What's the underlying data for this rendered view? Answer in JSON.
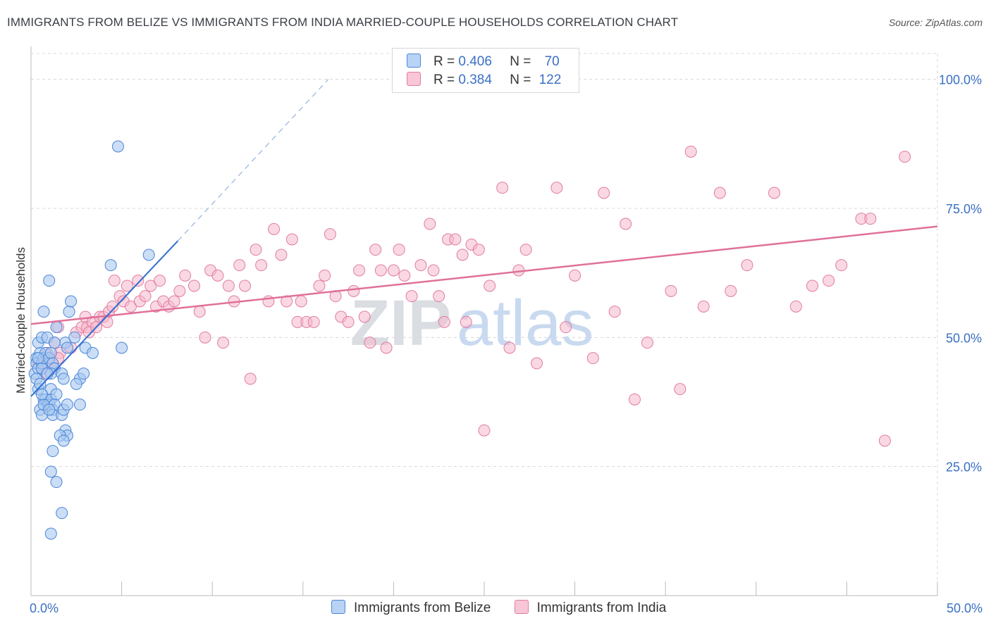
{
  "title": "IMMIGRANTS FROM BELIZE VS IMMIGRANTS FROM INDIA MARRIED-COUPLE HOUSEHOLDS CORRELATION CHART",
  "source": "Source: ZipAtlas.com",
  "watermark": {
    "part1": "ZIP",
    "part2": "atlas"
  },
  "legend": {
    "belize": {
      "r_label": "R =",
      "r_value": "0.406",
      "n_label": "N =",
      "n_value": "70"
    },
    "india": {
      "r_label": "R =",
      "r_value": "0.384",
      "n_label": "N =",
      "n_value": "122"
    }
  },
  "colors": {
    "belize_fill": "#a9c8f0",
    "belize_stroke": "#4a86d8",
    "belize_line": "#2f6fd0",
    "india_fill": "#f5b8cc",
    "india_stroke": "#e07ca0",
    "india_line": "#e0709a",
    "grid": "#d8d8d8",
    "axis_text": "#3a6fc4"
  },
  "chart_data": {
    "type": "scatter",
    "title": "IMMIGRANTS FROM BELIZE VS IMMIGRANTS FROM INDIA MARRIED-COUPLE HOUSEHOLDS CORRELATION CHART",
    "xlabel": "",
    "ylabel": "Married-couple Households",
    "xlim": [
      0,
      50
    ],
    "ylim": [
      0,
      105
    ],
    "x_tick_labels": [
      "0.0%",
      "50.0%"
    ],
    "y_ticks": [
      25,
      50,
      75,
      100
    ],
    "y_tick_labels": [
      "25.0%",
      "50.0%",
      "75.0%",
      "100.0%"
    ],
    "grid": true,
    "legend_position": "bottom",
    "series": [
      {
        "name": "Immigrants from Belize",
        "R": 0.406,
        "N": 70,
        "trend": {
          "x0": 0,
          "y0": 38.6,
          "x1": 8.1,
          "y1": 68.7,
          "dash_to_x": 16.4,
          "dash_to_y": 100.0
        },
        "points": [
          [
            0.2,
            43
          ],
          [
            0.3,
            46
          ],
          [
            0.3,
            45
          ],
          [
            0.4,
            44
          ],
          [
            0.3,
            42
          ],
          [
            0.4,
            40
          ],
          [
            0.5,
            41
          ],
          [
            0.5,
            47
          ],
          [
            0.6,
            45
          ],
          [
            0.6,
            44
          ],
          [
            0.7,
            46
          ],
          [
            0.8,
            47
          ],
          [
            0.4,
            49
          ],
          [
            0.6,
            50
          ],
          [
            0.9,
            50
          ],
          [
            1.0,
            46
          ],
          [
            1.1,
            47
          ],
          [
            1.2,
            45
          ],
          [
            1.3,
            44
          ],
          [
            1.1,
            43
          ],
          [
            0.7,
            38
          ],
          [
            0.8,
            38
          ],
          [
            0.9,
            37
          ],
          [
            1.0,
            37
          ],
          [
            1.1,
            38
          ],
          [
            1.2,
            36
          ],
          [
            1.3,
            37
          ],
          [
            1.2,
            35
          ],
          [
            0.5,
            36
          ],
          [
            0.6,
            35
          ],
          [
            0.7,
            37
          ],
          [
            1.1,
            40
          ],
          [
            1.4,
            39
          ],
          [
            1.7,
            35
          ],
          [
            1.8,
            36
          ],
          [
            1.7,
            43
          ],
          [
            1.8,
            42
          ],
          [
            2.0,
            37
          ],
          [
            1.9,
            32
          ],
          [
            2.0,
            31
          ],
          [
            1.6,
            31
          ],
          [
            1.8,
            30
          ],
          [
            1.2,
            28
          ],
          [
            1.1,
            24
          ],
          [
            1.4,
            22
          ],
          [
            1.7,
            16
          ],
          [
            1.1,
            12
          ],
          [
            0.7,
            55
          ],
          [
            1.0,
            61
          ],
          [
            1.4,
            52
          ],
          [
            1.9,
            49
          ],
          [
            2.0,
            48
          ],
          [
            2.1,
            55
          ],
          [
            2.2,
            57
          ],
          [
            2.4,
            50
          ],
          [
            2.7,
            42
          ],
          [
            2.9,
            43
          ],
          [
            2.7,
            37
          ],
          [
            3.0,
            48
          ],
          [
            3.4,
            47
          ],
          [
            4.4,
            64
          ],
          [
            4.8,
            87
          ],
          [
            5.0,
            48
          ],
          [
            6.5,
            66
          ],
          [
            1.0,
            36
          ],
          [
            1.3,
            49
          ],
          [
            0.9,
            43
          ],
          [
            2.5,
            41
          ],
          [
            0.4,
            46
          ],
          [
            0.6,
            39
          ]
        ]
      },
      {
        "name": "Immigrants from India",
        "R": 0.384,
        "N": 122,
        "trend": {
          "x0": 0,
          "y0": 52.6,
          "x1": 50,
          "y1": 71.5
        },
        "points": [
          [
            0.4,
            45
          ],
          [
            0.6,
            44
          ],
          [
            0.8,
            43
          ],
          [
            1.0,
            46
          ],
          [
            1.1,
            45
          ],
          [
            1.3,
            44
          ],
          [
            0.9,
            47
          ],
          [
            1.3,
            49
          ],
          [
            1.5,
            52
          ],
          [
            1.6,
            47
          ],
          [
            1.5,
            46
          ],
          [
            2.2,
            48
          ],
          [
            2.5,
            51
          ],
          [
            2.8,
            52
          ],
          [
            3.0,
            54
          ],
          [
            3.1,
            52
          ],
          [
            3.2,
            51
          ],
          [
            3.4,
            53
          ],
          [
            3.6,
            52
          ],
          [
            3.8,
            54
          ],
          [
            4.0,
            54
          ],
          [
            4.2,
            53
          ],
          [
            4.3,
            55
          ],
          [
            4.5,
            56
          ],
          [
            4.6,
            61
          ],
          [
            4.9,
            58
          ],
          [
            5.1,
            57
          ],
          [
            5.3,
            60
          ],
          [
            5.5,
            56
          ],
          [
            5.9,
            61
          ],
          [
            6.0,
            57
          ],
          [
            6.3,
            58
          ],
          [
            6.6,
            60
          ],
          [
            6.9,
            56
          ],
          [
            7.1,
            61
          ],
          [
            7.3,
            57
          ],
          [
            7.6,
            56
          ],
          [
            7.9,
            57
          ],
          [
            8.2,
            59
          ],
          [
            8.5,
            62
          ],
          [
            9.0,
            60
          ],
          [
            9.3,
            55
          ],
          [
            9.6,
            50
          ],
          [
            9.9,
            63
          ],
          [
            10.3,
            62
          ],
          [
            10.6,
            49
          ],
          [
            10.9,
            60
          ],
          [
            11.2,
            57
          ],
          [
            11.5,
            64
          ],
          [
            11.8,
            60
          ],
          [
            12.1,
            42
          ],
          [
            12.4,
            67
          ],
          [
            12.7,
            64
          ],
          [
            13.1,
            57
          ],
          [
            13.4,
            71
          ],
          [
            13.8,
            66
          ],
          [
            14.1,
            57
          ],
          [
            14.4,
            69
          ],
          [
            14.7,
            53
          ],
          [
            14.9,
            57
          ],
          [
            15.2,
            53
          ],
          [
            15.6,
            53
          ],
          [
            15.9,
            60
          ],
          [
            16.2,
            62
          ],
          [
            16.5,
            70
          ],
          [
            16.8,
            58
          ],
          [
            17.1,
            54
          ],
          [
            17.5,
            53
          ],
          [
            17.8,
            59
          ],
          [
            18.1,
            63
          ],
          [
            18.4,
            54
          ],
          [
            18.7,
            49
          ],
          [
            19.0,
            67
          ],
          [
            19.3,
            63
          ],
          [
            19.6,
            48
          ],
          [
            20.0,
            63
          ],
          [
            20.3,
            67
          ],
          [
            20.6,
            62
          ],
          [
            21.0,
            58
          ],
          [
            21.5,
            64
          ],
          [
            22.0,
            72
          ],
          [
            22.2,
            63
          ],
          [
            22.5,
            58
          ],
          [
            22.8,
            53
          ],
          [
            23.0,
            69
          ],
          [
            23.4,
            69
          ],
          [
            23.8,
            66
          ],
          [
            24.0,
            53
          ],
          [
            24.3,
            68
          ],
          [
            24.7,
            67
          ],
          [
            25.0,
            32
          ],
          [
            25.3,
            60
          ],
          [
            26.0,
            79
          ],
          [
            26.4,
            48
          ],
          [
            26.9,
            63
          ],
          [
            27.3,
            67
          ],
          [
            27.9,
            45
          ],
          [
            29.0,
            79
          ],
          [
            29.5,
            52
          ],
          [
            30.0,
            62
          ],
          [
            31.0,
            46
          ],
          [
            31.6,
            78
          ],
          [
            32.2,
            55
          ],
          [
            32.8,
            72
          ],
          [
            33.3,
            38
          ],
          [
            34.0,
            49
          ],
          [
            35.3,
            59
          ],
          [
            35.8,
            40
          ],
          [
            36.4,
            86
          ],
          [
            37.1,
            56
          ],
          [
            38.0,
            78
          ],
          [
            38.6,
            59
          ],
          [
            39.5,
            64
          ],
          [
            41.0,
            78
          ],
          [
            42.2,
            56
          ],
          [
            43.1,
            60
          ],
          [
            44.0,
            61
          ],
          [
            44.7,
            64
          ],
          [
            45.8,
            73
          ],
          [
            46.3,
            73
          ],
          [
            47.1,
            30
          ],
          [
            48.2,
            85
          ]
        ]
      }
    ]
  },
  "bottom_legend": {
    "belize": "Immigrants from Belize",
    "india": "Immigrants from India"
  }
}
